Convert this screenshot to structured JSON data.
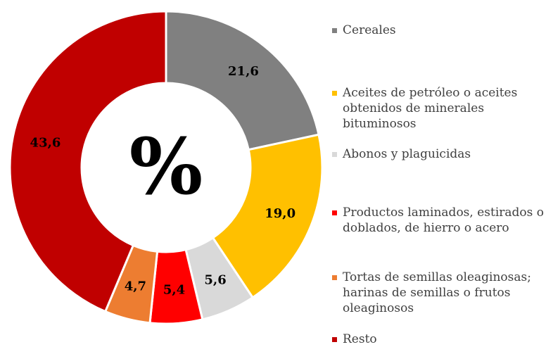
{
  "chart_data": {
    "type": "donut",
    "center_label": "%",
    "categories": [
      "Cereales",
      "Aceites de petróleo o aceites obtenidos de minerales bituminosos",
      "Abonos y plaguicidas",
      "Productos laminados, estirados o doblados, de hierro o acero",
      "Tortas de semillas oleaginosas; harinas de semillas o frutos oleaginosos",
      "Resto"
    ],
    "values": [
      21.6,
      19.0,
      5.6,
      5.4,
      4.7,
      43.6
    ],
    "value_labels": [
      "21,6",
      "19,0",
      "5,6",
      "5,4",
      "4,7",
      "43,6"
    ],
    "colors": [
      "#808080",
      "#ffc000",
      "#d9d9d9",
      "#ff0000",
      "#ed7d31",
      "#c00000"
    ]
  }
}
